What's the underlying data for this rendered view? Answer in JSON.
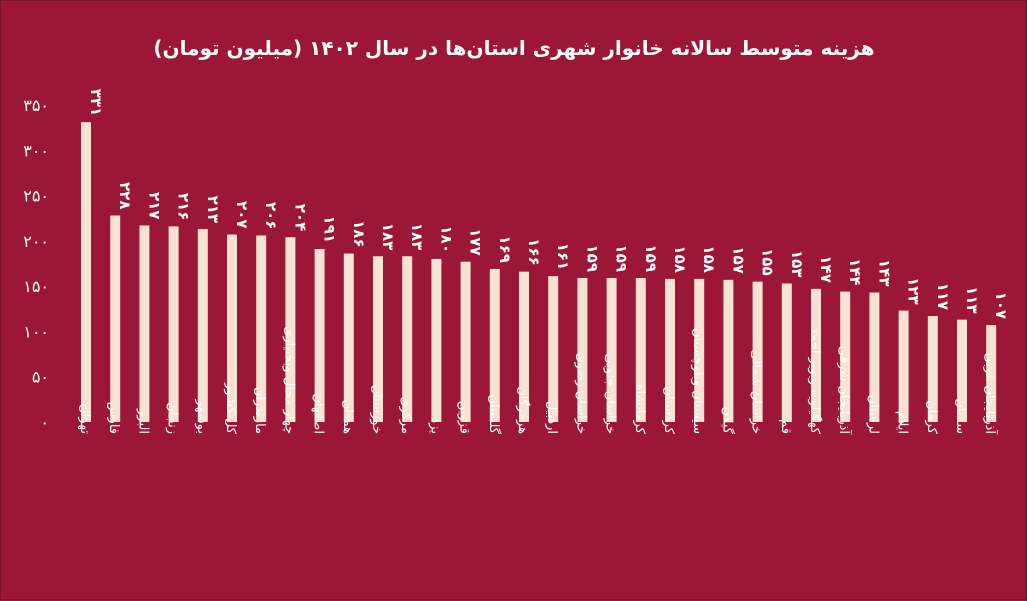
{
  "chart_data": {
    "type": "bar",
    "title": "هزینه متوسط سالانه خانوار شهری استان‌ها در سال ۱۴۰۲ (میلیون تومان)",
    "xlabel": "",
    "ylabel": "",
    "ylim": [
      0,
      350
    ],
    "yticks": [
      0,
      50,
      100,
      150,
      200,
      250,
      300,
      350
    ],
    "ytick_labels": [
      "۰",
      "۵۰",
      "۱۰۰",
      "۱۵۰",
      "۲۰۰",
      "۲۵۰",
      "۳۰۰",
      "۳۵۰"
    ],
    "grid": false,
    "categories": [
      "تهران",
      "فارس",
      "البرز",
      "زنجان",
      "بوشهر",
      "کل کشور",
      "مازندران",
      "چهار محال وبختیاری",
      "اصفهان",
      "همدان",
      "خوزستان",
      "مرکزی",
      "یزد",
      "قزوین",
      "گلستان",
      "هرمزگان",
      "اردبیل",
      "خراسان رضوی",
      "خراسان جنوبی",
      "کرمانشاه",
      "کردستان",
      "سیستان وبلوچستان",
      "گیلان",
      "خراسان شمالی",
      "قم",
      "کهگیلویه وبویر احمد",
      "آذربایجان شرقی",
      "لرستان",
      "ایلام",
      "کرمان",
      "سمنان",
      "آذربایجان غربی"
    ],
    "values": [
      331,
      228,
      217,
      216,
      213,
      207,
      206,
      204,
      191,
      186,
      183,
      183,
      180,
      177,
      169,
      166,
      161,
      159,
      159,
      159,
      158,
      158,
      157,
      155,
      153,
      147,
      144,
      143,
      123,
      117,
      113,
      107
    ],
    "value_labels": [
      "۳۳۱",
      "۲۲۸",
      "۲۱۷",
      "۲۱۶",
      "۲۱۳",
      "۲۰۷",
      "۲۰۶",
      "۲۰۴",
      "۱۹۱",
      "۱۸۶",
      "۱۸۳",
      "۱۸۳",
      "۱۸۰",
      "۱۷۷",
      "۱۶۹",
      "۱۶۶",
      "۱۶۱",
      "۱۵۹",
      "۱۵۹",
      "۱۵۹",
      "۱۵۸",
      "۱۵۸",
      "۱۵۷",
      "۱۵۵",
      "۱۵۳",
      "۱۴۷",
      "۱۴۴",
      "۱۴۳",
      "۱۲۳",
      "۱۱۷",
      "۱۱۳",
      "۱۰۷"
    ],
    "colors": {
      "background": "#9c1737",
      "bar": "#f7e2d3",
      "text": "#ffffff"
    }
  }
}
